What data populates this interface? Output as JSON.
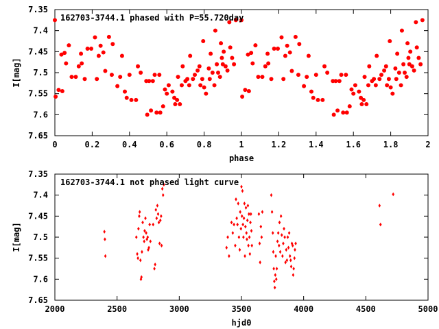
{
  "chart_data": [
    {
      "type": "scatter",
      "title": "162703-3744.1 phased with P=55.720day",
      "xlabel": "phase",
      "ylabel": "I[mag]",
      "xlim": [
        0,
        2
      ],
      "ylim": [
        7.65,
        7.35
      ],
      "y_inverted": true,
      "xticks": [
        0,
        0.2,
        0.4,
        0.6,
        0.8,
        1,
        1.2,
        1.4,
        1.6,
        1.8,
        2
      ],
      "xtick_labels": [
        "0",
        "0.2",
        "0.4",
        "0.6",
        "0.8",
        "1",
        "1.2",
        "1.4",
        "1.6",
        "1.8",
        "2"
      ],
      "yticks": [
        7.35,
        7.4,
        7.45,
        7.5,
        7.55,
        7.6,
        7.65
      ],
      "ytick_labels": [
        "7.35",
        "7.4",
        "7.45",
        "7.5",
        "7.55",
        "7.6",
        "7.65"
      ],
      "grid": false,
      "color": "#ff0000",
      "marker": "filled-circle",
      "base_points": [
        [
          0.0,
          7.375
        ],
        [
          0.004,
          7.557
        ],
        [
          0.02,
          7.541
        ],
        [
          0.035,
          7.457
        ],
        [
          0.04,
          7.544
        ],
        [
          0.052,
          7.453
        ],
        [
          0.06,
          7.478
        ],
        [
          0.075,
          7.435
        ],
        [
          0.09,
          7.51
        ],
        [
          0.112,
          7.51
        ],
        [
          0.128,
          7.485
        ],
        [
          0.14,
          7.455
        ],
        [
          0.144,
          7.478
        ],
        [
          0.16,
          7.515
        ],
        [
          0.175,
          7.443
        ],
        [
          0.195,
          7.443
        ],
        [
          0.215,
          7.416
        ],
        [
          0.225,
          7.515
        ],
        [
          0.235,
          7.46
        ],
        [
          0.245,
          7.436
        ],
        [
          0.26,
          7.452
        ],
        [
          0.27,
          7.496
        ],
        [
          0.29,
          7.415
        ],
        [
          0.305,
          7.505
        ],
        [
          0.31,
          7.432
        ],
        [
          0.335,
          7.532
        ],
        [
          0.35,
          7.51
        ],
        [
          0.36,
          7.46
        ],
        [
          0.375,
          7.545
        ],
        [
          0.385,
          7.56
        ],
        [
          0.4,
          7.505
        ],
        [
          0.41,
          7.565
        ],
        [
          0.435,
          7.565
        ],
        [
          0.445,
          7.485
        ],
        [
          0.46,
          7.5
        ],
        [
          0.49,
          7.52
        ],
        [
          0.495,
          7.6
        ],
        [
          0.505,
          7.52
        ],
        [
          0.515,
          7.59
        ],
        [
          0.525,
          7.52
        ],
        [
          0.535,
          7.505
        ],
        [
          0.545,
          7.595
        ],
        [
          0.56,
          7.505
        ],
        [
          0.565,
          7.595
        ],
        [
          0.58,
          7.58
        ],
        [
          0.59,
          7.54
        ],
        [
          0.6,
          7.55
        ],
        [
          0.61,
          7.53
        ],
        [
          0.63,
          7.545
        ],
        [
          0.64,
          7.56
        ],
        [
          0.645,
          7.575
        ],
        [
          0.655,
          7.565
        ],
        [
          0.66,
          7.51
        ],
        [
          0.67,
          7.575
        ],
        [
          0.68,
          7.53
        ],
        [
          0.685,
          7.485
        ],
        [
          0.7,
          7.52
        ],
        [
          0.71,
          7.515
        ],
        [
          0.72,
          7.53
        ],
        [
          0.725,
          7.46
        ],
        [
          0.74,
          7.515
        ],
        [
          0.75,
          7.505
        ],
        [
          0.765,
          7.495
        ],
        [
          0.775,
          7.485
        ],
        [
          0.78,
          7.53
        ],
        [
          0.79,
          7.515
        ],
        [
          0.795,
          7.425
        ],
        [
          0.8,
          7.535
        ],
        [
          0.81,
          7.55
        ],
        [
          0.825,
          7.49
        ],
        [
          0.83,
          7.515
        ],
        [
          0.835,
          7.455
        ],
        [
          0.845,
          7.5
        ],
        [
          0.855,
          7.53
        ],
        [
          0.86,
          7.4
        ],
        [
          0.868,
          7.48
        ],
        [
          0.875,
          7.5
        ],
        [
          0.885,
          7.51
        ],
        [
          0.89,
          7.43
        ],
        [
          0.895,
          7.465
        ],
        [
          0.9,
          7.48
        ],
        [
          0.905,
          7.45
        ],
        [
          0.915,
          7.485
        ],
        [
          0.925,
          7.495
        ],
        [
          0.935,
          7.38
        ],
        [
          0.94,
          7.44
        ],
        [
          0.95,
          7.465
        ],
        [
          0.96,
          7.48
        ],
        [
          0.97,
          7.375
        ]
      ]
    },
    {
      "type": "scatter",
      "title": "162703-3744.1 not phased light curve",
      "xlabel": "hjd0",
      "ylabel": "I[mag]",
      "xlim": [
        2000,
        5000
      ],
      "ylim": [
        7.65,
        7.35
      ],
      "y_inverted": true,
      "xticks": [
        2000,
        2500,
        3000,
        3500,
        4000,
        4500,
        5000
      ],
      "xtick_labels": [
        "2000",
        "2500",
        "3000",
        "3500",
        "4000",
        "4500",
        "5000"
      ],
      "yticks": [
        7.35,
        7.4,
        7.45,
        7.5,
        7.55,
        7.6,
        7.65
      ],
      "ytick_labels": [
        "7.35",
        "7.4",
        "7.45",
        "7.5",
        "7.55",
        "7.6",
        "7.65"
      ],
      "grid": false,
      "color": "#ff0000",
      "marker": "small-diamond",
      "points": [
        [
          2398,
          7.487
        ],
        [
          2402,
          7.505
        ],
        [
          2406,
          7.545
        ],
        [
          2655,
          7.5
        ],
        [
          2662,
          7.54
        ],
        [
          2668,
          7.55
        ],
        [
          2672,
          7.48
        ],
        [
          2678,
          7.45
        ],
        [
          2682,
          7.44
        ],
        [
          2688,
          7.555
        ],
        [
          2692,
          7.6
        ],
        [
          2696,
          7.595
        ],
        [
          2700,
          7.535
        ],
        [
          2706,
          7.465
        ],
        [
          2712,
          7.5
        ],
        [
          2718,
          7.51
        ],
        [
          2722,
          7.485
        ],
        [
          2728,
          7.455
        ],
        [
          2734,
          7.49
        ],
        [
          2740,
          7.505
        ],
        [
          2746,
          7.5
        ],
        [
          2750,
          7.53
        ],
        [
          2756,
          7.525
        ],
        [
          2762,
          7.47
        ],
        [
          2768,
          7.51
        ],
        [
          2790,
          7.47
        ],
        [
          2800,
          7.575
        ],
        [
          2806,
          7.565
        ],
        [
          2812,
          7.435
        ],
        [
          2818,
          7.455
        ],
        [
          2824,
          7.425
        ],
        [
          2830,
          7.445
        ],
        [
          2836,
          7.465
        ],
        [
          2842,
          7.515
        ],
        [
          2848,
          7.46
        ],
        [
          2854,
          7.45
        ],
        [
          2858,
          7.52
        ],
        [
          2864,
          7.385
        ],
        [
          2870,
          7.4
        ],
        [
          2876,
          7.375
        ],
        [
          3380,
          7.525
        ],
        [
          3390,
          7.5
        ],
        [
          3400,
          7.545
        ],
        [
          3420,
          7.465
        ],
        [
          3430,
          7.49
        ],
        [
          3440,
          7.47
        ],
        [
          3450,
          7.52
        ],
        [
          3456,
          7.41
        ],
        [
          3462,
          7.455
        ],
        [
          3468,
          7.47
        ],
        [
          3474,
          7.42
        ],
        [
          3480,
          7.5
        ],
        [
          3486,
          7.53
        ],
        [
          3490,
          7.44
        ],
        [
          3496,
          7.48
        ],
        [
          3500,
          7.38
        ],
        [
          3504,
          7.45
        ],
        [
          3508,
          7.39
        ],
        [
          3512,
          7.47
        ],
        [
          3516,
          7.5
        ],
        [
          3520,
          7.455
        ],
        [
          3524,
          7.42
        ],
        [
          3528,
          7.545
        ],
        [
          3532,
          7.475
        ],
        [
          3536,
          7.43
        ],
        [
          3540,
          7.49
        ],
        [
          3544,
          7.505
        ],
        [
          3548,
          7.46
        ],
        [
          3552,
          7.425
        ],
        [
          3556,
          7.52
        ],
        [
          3560,
          7.445
        ],
        [
          3564,
          7.5
        ],
        [
          3568,
          7.54
        ],
        [
          3572,
          7.465
        ],
        [
          3576,
          7.445
        ],
        [
          3580,
          7.485
        ],
        [
          3584,
          7.52
        ],
        [
          3640,
          7.445
        ],
        [
          3646,
          7.515
        ],
        [
          3650,
          7.56
        ],
        [
          3656,
          7.475
        ],
        [
          3662,
          7.5
        ],
        [
          3668,
          7.44
        ],
        [
          3740,
          7.4
        ],
        [
          3746,
          7.44
        ],
        [
          3752,
          7.49
        ],
        [
          3756,
          7.535
        ],
        [
          3760,
          7.575
        ],
        [
          3764,
          7.605
        ],
        [
          3768,
          7.62
        ],
        [
          3772,
          7.59
        ],
        [
          3776,
          7.545
        ],
        [
          3780,
          7.6
        ],
        [
          3784,
          7.575
        ],
        [
          3790,
          7.51
        ],
        [
          3796,
          7.49
        ],
        [
          3802,
          7.52
        ],
        [
          3806,
          7.465
        ],
        [
          3812,
          7.535
        ],
        [
          3818,
          7.45
        ],
        [
          3824,
          7.495
        ],
        [
          3830,
          7.545
        ],
        [
          3836,
          7.515
        ],
        [
          3842,
          7.48
        ],
        [
          3848,
          7.5
        ],
        [
          3854,
          7.56
        ],
        [
          3860,
          7.53
        ],
        [
          3866,
          7.555
        ],
        [
          3872,
          7.5
        ],
        [
          3878,
          7.525
        ],
        [
          3884,
          7.49
        ],
        [
          3890,
          7.545
        ],
        [
          3896,
          7.555
        ],
        [
          3900,
          7.57
        ],
        [
          3906,
          7.515
        ],
        [
          3912,
          7.52
        ],
        [
          3916,
          7.59
        ],
        [
          3920,
          7.575
        ],
        [
          3926,
          7.55
        ],
        [
          3930,
          7.53
        ],
        [
          3936,
          7.515
        ],
        [
          4610,
          7.425
        ],
        [
          4618,
          7.47
        ],
        [
          4720,
          7.398
        ]
      ]
    }
  ]
}
